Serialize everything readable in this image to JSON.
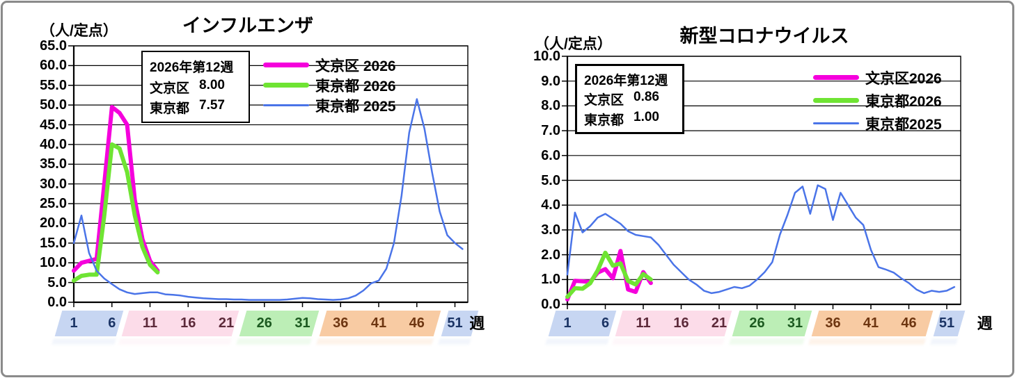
{
  "page": {
    "frame_color": "#8a8a8a",
    "background": "#ffffff",
    "gridline_color": "#000000"
  },
  "chart_data": [
    {
      "id": "influenza",
      "type": "line",
      "title": "インフルエンザ",
      "unit_label": "（人/定点）",
      "y_axis": {
        "min": 0,
        "max": 65,
        "step": 5,
        "decimals": 1
      },
      "x_axis": {
        "labels": [
          1,
          6,
          11,
          16,
          21,
          26,
          31,
          36,
          41,
          46,
          51
        ],
        "suffix": "週",
        "suffix_week": 52.9
      },
      "info_box": {
        "title": "2026年第12週",
        "rows": [
          {
            "label": "文京区",
            "value": "8.00"
          },
          {
            "label": "東京都",
            "value": "7.57"
          }
        ]
      },
      "series": [
        {
          "name": "文京区 2026",
          "color": "#f500dc",
          "line_width": 6,
          "values": [
            8.0,
            10.0,
            10.5,
            11.0,
            30.0,
            49.5,
            48.0,
            45.0,
            26.0,
            16.0,
            10.5,
            8.0
          ]
        },
        {
          "name": "東京都 2026",
          "color": "#6fe433",
          "line_width": 6,
          "values": [
            5.5,
            6.7,
            7.0,
            7.0,
            22.0,
            40.0,
            39.0,
            33.0,
            22.0,
            14.0,
            9.5,
            7.57
          ]
        },
        {
          "name": "東京都 2025",
          "color": "#4a74e8",
          "line_width": 2.5,
          "values": [
            15.0,
            22.0,
            12.5,
            8.0,
            6.0,
            4.6,
            3.3,
            2.5,
            2.1,
            2.3,
            2.5,
            2.5,
            2.0,
            1.9,
            1.7,
            1.4,
            1.2,
            1.0,
            0.9,
            0.8,
            0.8,
            0.7,
            0.7,
            0.6,
            0.6,
            0.6,
            0.6,
            0.6,
            0.7,
            0.9,
            1.1,
            1.0,
            0.8,
            0.7,
            0.6,
            0.7,
            1.0,
            1.7,
            3.0,
            4.8,
            5.5,
            8.5,
            15.0,
            27.0,
            43.0,
            51.5,
            44.0,
            33.0,
            23.0,
            17.0,
            15.0,
            13.5
          ]
        }
      ],
      "season_bands": [
        {
          "color": "#c7d6f2",
          "text_color": "#1b3465",
          "from_week": -1.0,
          "to_week": 7.0
        },
        {
          "color": "#fcdce9",
          "text_color": "#5d2a3a",
          "from_week": 7.8,
          "to_week": 22.2
        },
        {
          "color": "#bceeb6",
          "text_color": "#1c5a20",
          "from_week": 23.2,
          "to_week": 32.7
        },
        {
          "color": "#f8cba3",
          "text_color": "#6e3611",
          "from_week": 33.7,
          "to_week": 48.7
        },
        {
          "color": "#c7d6f2",
          "text_color": "#1b3465",
          "from_week": 49.7,
          "to_week": 53.6
        }
      ]
    },
    {
      "id": "coronavirus",
      "type": "line",
      "title": "新型コロナウイルス",
      "unit_label": "（人/定点）",
      "y_axis": {
        "min": 0,
        "max": 10,
        "step": 1,
        "decimals": 1
      },
      "x_axis": {
        "labels": [
          1,
          6,
          11,
          16,
          21,
          26,
          31,
          36,
          41,
          46,
          51
        ],
        "suffix": "週",
        "suffix_week": 55.0
      },
      "info_box": {
        "title": "2026年第12週",
        "rows": [
          {
            "label": "文京区",
            "value": "0.86"
          },
          {
            "label": "東京都",
            "value": "1.00"
          }
        ]
      },
      "series": [
        {
          "name": "文京区2026",
          "color": "#f500dc",
          "line_width": 6,
          "values": [
            0.2,
            0.95,
            0.93,
            0.9,
            1.28,
            1.42,
            1.05,
            2.15,
            0.6,
            0.5,
            1.3,
            0.86
          ]
        },
        {
          "name": "東京都2026",
          "color": "#6fe433",
          "line_width": 6,
          "values": [
            0.3,
            0.65,
            0.63,
            0.85,
            1.37,
            2.08,
            1.56,
            1.65,
            0.94,
            0.8,
            1.22,
            1.0
          ]
        },
        {
          "name": "東京都2025",
          "color": "#4a74e8",
          "line_width": 2.5,
          "values": [
            1.2,
            3.7,
            2.9,
            3.15,
            3.5,
            3.65,
            3.45,
            3.25,
            2.95,
            2.8,
            2.75,
            2.7,
            2.4,
            2.0,
            1.6,
            1.3,
            1.0,
            0.8,
            0.55,
            0.45,
            0.5,
            0.6,
            0.7,
            0.65,
            0.75,
            1.0,
            1.3,
            1.7,
            2.8,
            3.6,
            4.5,
            4.75,
            3.65,
            4.8,
            4.65,
            3.4,
            4.5,
            4.0,
            3.5,
            3.2,
            2.2,
            1.5,
            1.4,
            1.28,
            1.05,
            0.86,
            0.6,
            0.45,
            0.55,
            0.5,
            0.55,
            0.7
          ]
        }
      ],
      "season_bands": [
        {
          "color": "#c7d6f2",
          "text_color": "#1b3465",
          "from_week": -1.0,
          "to_week": 7.0
        },
        {
          "color": "#fcdce9",
          "text_color": "#5d2a3a",
          "from_week": 7.8,
          "to_week": 22.2
        },
        {
          "color": "#bceeb6",
          "text_color": "#1c5a20",
          "from_week": 23.2,
          "to_week": 32.7
        },
        {
          "color": "#f8cba3",
          "text_color": "#6e3611",
          "from_week": 33.7,
          "to_week": 48.7
        },
        {
          "color": "#c7d6f2",
          "text_color": "#1b3465",
          "from_week": 49.7,
          "to_week": 52.9
        }
      ]
    }
  ]
}
